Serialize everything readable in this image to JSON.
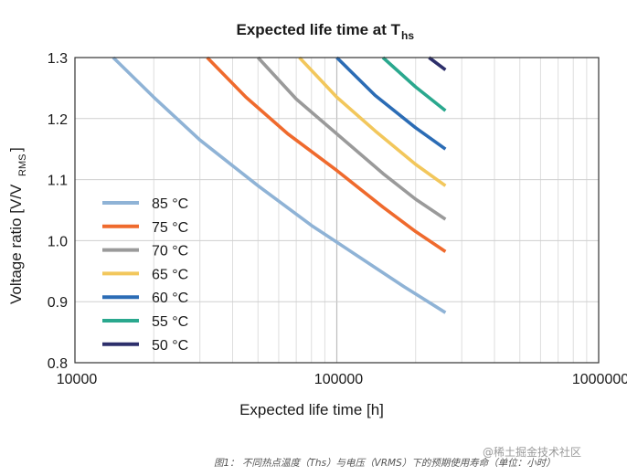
{
  "chart_data": {
    "type": "line",
    "title": "Expected life time at T",
    "title_subscript": "hs",
    "xlabel": "Expected life time [h]",
    "ylabel": "Voltage ratio [V/V",
    "ylabel_subscript": "RMS",
    "ylabel_suffix": "]",
    "x_scale": "log",
    "xlim": [
      10000,
      1000000
    ],
    "ylim": [
      0.8,
      1.3
    ],
    "x_ticks": [
      10000,
      100000,
      1000000
    ],
    "x_tick_labels": [
      "10000",
      "100000",
      "1000000"
    ],
    "y_ticks": [
      0.8,
      0.9,
      1.0,
      1.1,
      1.2,
      1.3
    ],
    "y_tick_labels": [
      "0.8",
      "0.9",
      "1.0",
      "1.1",
      "1.2",
      "1.3"
    ],
    "grid": true,
    "legend_position": "left",
    "series": [
      {
        "name": "85 °C",
        "color": "#8fb3d6",
        "x": [
          14000,
          20000,
          30000,
          50000,
          80000,
          120000,
          180000,
          260000
        ],
        "y": [
          1.3,
          1.235,
          1.165,
          1.09,
          1.025,
          0.975,
          0.925,
          0.882
        ]
      },
      {
        "name": "75 °C",
        "color": "#ef6a2d",
        "x": [
          32000,
          45000,
          65000,
          100000,
          150000,
          200000,
          260000
        ],
        "y": [
          1.3,
          1.235,
          1.175,
          1.115,
          1.055,
          1.015,
          0.982
        ]
      },
      {
        "name": "70 °C",
        "color": "#9a9a9a",
        "x": [
          50000,
          70000,
          100000,
          150000,
          200000,
          260000
        ],
        "y": [
          1.3,
          1.232,
          1.175,
          1.11,
          1.068,
          1.035
        ]
      },
      {
        "name": "65 °C",
        "color": "#f2c75c",
        "x": [
          72000,
          100000,
          140000,
          200000,
          260000
        ],
        "y": [
          1.3,
          1.235,
          1.18,
          1.125,
          1.09
        ]
      },
      {
        "name": "60 °C",
        "color": "#2b6cb5",
        "x": [
          100000,
          140000,
          200000,
          260000
        ],
        "y": [
          1.3,
          1.238,
          1.185,
          1.15
        ]
      },
      {
        "name": "55 °C",
        "color": "#2aa88e",
        "x": [
          150000,
          200000,
          260000
        ],
        "y": [
          1.3,
          1.252,
          1.213
        ]
      },
      {
        "name": "50 °C",
        "color": "#2d2f6b",
        "x": [
          225000,
          260000
        ],
        "y": [
          1.3,
          1.28
        ]
      }
    ]
  },
  "caption": "图1： 不同热点温度（Ths）与电压（VRMS）下的预期使用寿命（单位：小时）",
  "watermark": "@稀土掘金技术社区"
}
